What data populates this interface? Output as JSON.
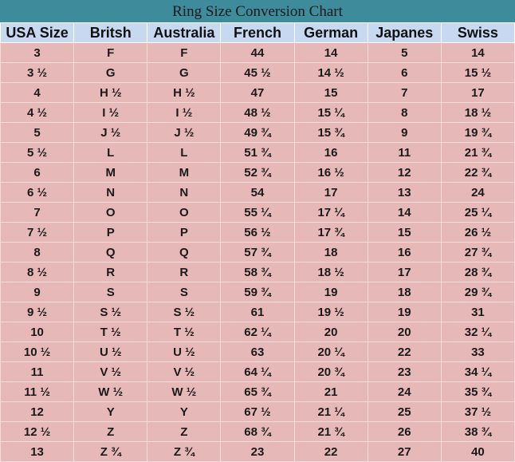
{
  "title": "Ring Size Conversion Chart",
  "table": {
    "header": [
      "USA Size",
      "Britsh",
      "Australia",
      "French",
      "German",
      "Japanes",
      "Swiss"
    ],
    "rows": [
      [
        "3",
        "F",
        "F",
        "44",
        "14",
        "5",
        "14"
      ],
      [
        "3 ½",
        "G",
        "G",
        "45 ½",
        "14 ½",
        "6",
        "15 ½"
      ],
      [
        "4",
        "H ½",
        "H ½",
        "47",
        "15",
        "7",
        "17"
      ],
      [
        "4 ½",
        "I ½",
        "I ½",
        "48 ½",
        "15 ¼",
        "8",
        "18 ½"
      ],
      [
        "5",
        "J ½",
        "J ½",
        "49 ¾",
        "15 ¾",
        "9",
        "19 ¾"
      ],
      [
        "5 ½",
        "L",
        "L",
        "51 ¾",
        "16",
        "11",
        "21 ¾"
      ],
      [
        "6",
        "M",
        "M",
        "52 ¾",
        "16 ½",
        "12",
        "22 ¾"
      ],
      [
        "6 ½",
        "N",
        "N",
        "54",
        "17",
        "13",
        "24"
      ],
      [
        "7",
        "O",
        "O",
        "55 ¼",
        "17 ¼",
        "14",
        "25 ¼"
      ],
      [
        "7 ½",
        "P",
        "P",
        "56 ½",
        "17 ¾",
        "15",
        "26 ½"
      ],
      [
        "8",
        "Q",
        "Q",
        "57 ¾",
        "18",
        "16",
        "27 ¾"
      ],
      [
        "8 ½",
        "R",
        "R",
        "58 ¾",
        "18 ½",
        "17",
        "28 ¾"
      ],
      [
        "9",
        "S",
        "S",
        "59 ¾",
        "19",
        "18",
        "29 ¾"
      ],
      [
        "9 ½",
        "S ½",
        "S ½",
        "61",
        "19 ½",
        "19",
        "31"
      ],
      [
        "10",
        "T ½",
        "T ½",
        "62 ¼",
        "20",
        "20",
        "32 ¼"
      ],
      [
        "10 ½",
        "U ½",
        "U ½",
        "63",
        "20 ¼",
        "22",
        "33"
      ],
      [
        "11",
        "V ½",
        "V ½",
        "64 ¼",
        "20 ¾",
        "23",
        "34 ¼"
      ],
      [
        "11 ½",
        "W ½",
        "W ½",
        "65 ¾",
        "21",
        "24",
        "35 ¾"
      ],
      [
        "12",
        "Y",
        "Y",
        "67 ½",
        "21 ¼",
        "25",
        "37 ½"
      ],
      [
        "12 ½",
        "Z",
        "Z",
        "68 ¾",
        "21 ¾",
        "26",
        "38 ¾"
      ],
      [
        "13",
        "Z ¾",
        "Z ¾",
        "23",
        "22",
        "27",
        "40"
      ]
    ]
  }
}
